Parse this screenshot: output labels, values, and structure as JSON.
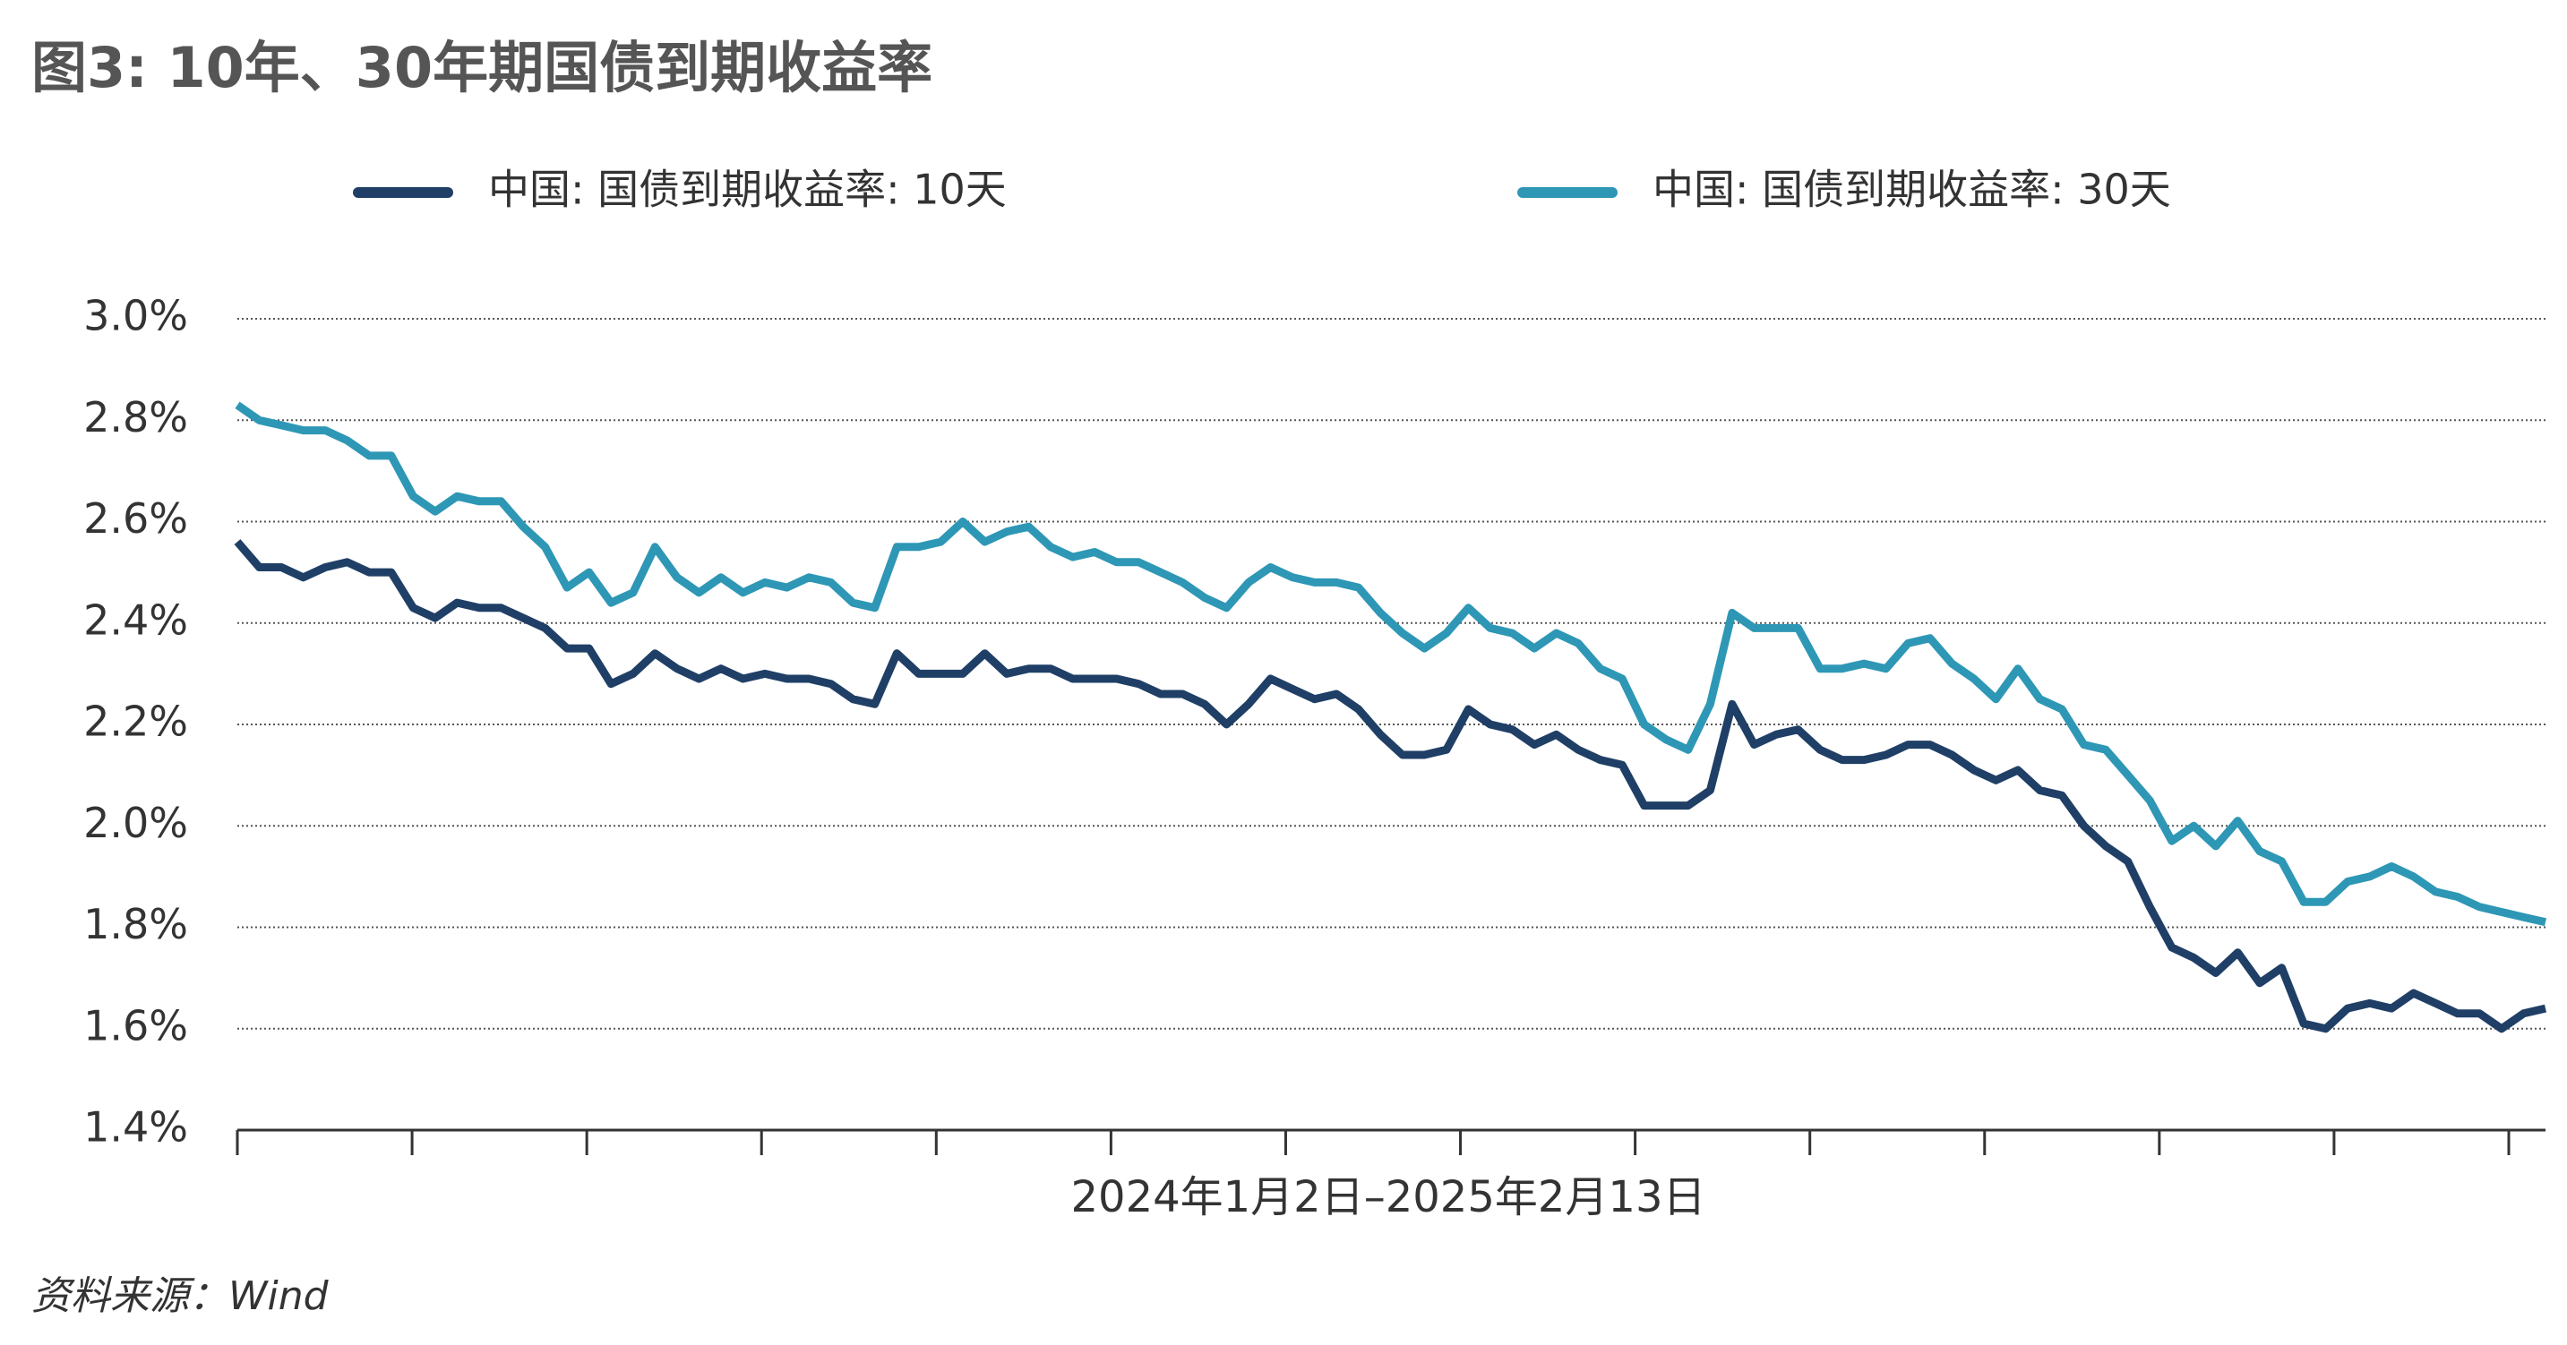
{
  "chart_data": {
    "type": "line",
    "title": "图3: 10年、30年期国债到期收益率",
    "x_label": "2024年1月2日–2025年2月13日",
    "source": "资料来源：Wind",
    "ylim": [
      1.4,
      3.0
    ],
    "yticks": [
      {
        "value": 1.4,
        "label": "1.4%"
      },
      {
        "value": 1.6,
        "label": "1.6%"
      },
      {
        "value": 1.8,
        "label": "1.8%"
      },
      {
        "value": 2.0,
        "label": "2.0%"
      },
      {
        "value": 2.2,
        "label": "2.2%"
      },
      {
        "value": 2.4,
        "label": "2.4%"
      },
      {
        "value": 2.6,
        "label": "2.6%"
      },
      {
        "value": 2.8,
        "label": "2.8%"
      },
      {
        "value": 3.0,
        "label": "3.0%"
      }
    ],
    "grid": true,
    "series": [
      {
        "name": "中国: 国债到期收益率: 10天",
        "color": "#1f3f66",
        "values": [
          2.56,
          2.51,
          2.51,
          2.49,
          2.51,
          2.52,
          2.5,
          2.5,
          2.43,
          2.41,
          2.44,
          2.43,
          2.43,
          2.41,
          2.39,
          2.35,
          2.35,
          2.28,
          2.3,
          2.34,
          2.31,
          2.29,
          2.31,
          2.29,
          2.3,
          2.29,
          2.29,
          2.28,
          2.25,
          2.24,
          2.34,
          2.3,
          2.3,
          2.3,
          2.34,
          2.3,
          2.31,
          2.31,
          2.29,
          2.29,
          2.29,
          2.28,
          2.26,
          2.26,
          2.24,
          2.2,
          2.24,
          2.29,
          2.27,
          2.25,
          2.26,
          2.23,
          2.18,
          2.14,
          2.14,
          2.15,
          2.23,
          2.2,
          2.19,
          2.16,
          2.18,
          2.15,
          2.13,
          2.12,
          2.04,
          2.04,
          2.04,
          2.07,
          2.24,
          2.16,
          2.18,
          2.19,
          2.15,
          2.13,
          2.13,
          2.14,
          2.16,
          2.16,
          2.14,
          2.11,
          2.09,
          2.11,
          2.07,
          2.06,
          2.0,
          1.96,
          1.93,
          1.84,
          1.76,
          1.74,
          1.71,
          1.75,
          1.69,
          1.72,
          1.61,
          1.6,
          1.64,
          1.65,
          1.64,
          1.67,
          1.65,
          1.63,
          1.63,
          1.6,
          1.63,
          1.64
        ]
      },
      {
        "name": "中国: 国债到期收益率: 30天",
        "color": "#2e97b5",
        "values": [
          2.83,
          2.8,
          2.79,
          2.78,
          2.78,
          2.76,
          2.73,
          2.73,
          2.65,
          2.62,
          2.65,
          2.64,
          2.64,
          2.59,
          2.55,
          2.47,
          2.5,
          2.44,
          2.46,
          2.55,
          2.49,
          2.46,
          2.49,
          2.46,
          2.48,
          2.47,
          2.49,
          2.48,
          2.44,
          2.43,
          2.55,
          2.55,
          2.56,
          2.6,
          2.56,
          2.58,
          2.59,
          2.55,
          2.53,
          2.54,
          2.52,
          2.52,
          2.5,
          2.48,
          2.45,
          2.43,
          2.48,
          2.51,
          2.49,
          2.48,
          2.48,
          2.47,
          2.42,
          2.38,
          2.35,
          2.38,
          2.43,
          2.39,
          2.38,
          2.35,
          2.38,
          2.36,
          2.31,
          2.29,
          2.2,
          2.17,
          2.15,
          2.24,
          2.42,
          2.39,
          2.39,
          2.39,
          2.31,
          2.31,
          2.32,
          2.31,
          2.36,
          2.37,
          2.32,
          2.29,
          2.25,
          2.31,
          2.25,
          2.23,
          2.16,
          2.15,
          2.1,
          2.05,
          1.97,
          2.0,
          1.96,
          2.01,
          1.95,
          1.93,
          1.85,
          1.85,
          1.89,
          1.9,
          1.92,
          1.9,
          1.87,
          1.86,
          1.84,
          1.83,
          1.82,
          1.81
        ]
      }
    ]
  }
}
